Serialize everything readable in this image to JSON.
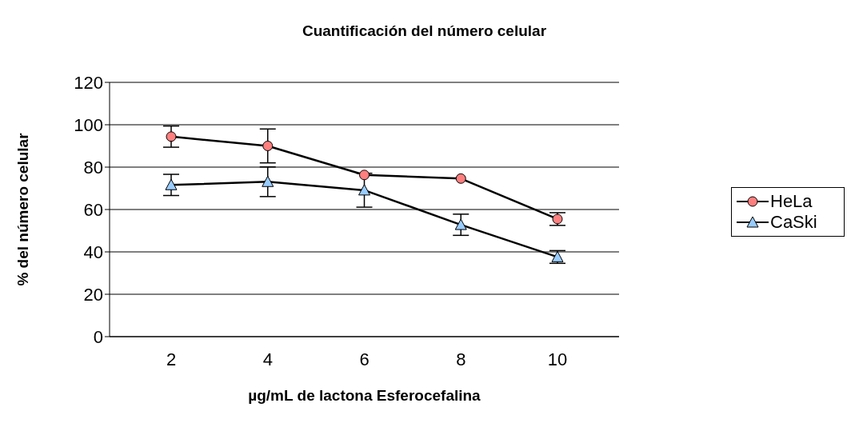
{
  "chart_data": {
    "type": "line",
    "title": "Cuantificación del número celular",
    "xlabel": "µg/mL de lactona Esferocefalina",
    "ylabel": "% del número celular",
    "categories": [
      "2",
      "4",
      "6",
      "8",
      "10"
    ],
    "series": [
      {
        "name": "HeLa",
        "color": "#ff7f7f",
        "marker": "circle",
        "values": [
          94.4,
          90.0,
          76.3,
          74.6,
          55.5
        ],
        "errors": [
          5,
          8,
          null,
          null,
          3
        ]
      },
      {
        "name": "CaSki",
        "color": "#99ccff",
        "marker": "triangle",
        "values": [
          71.6,
          73.1,
          69.1,
          52.8,
          37.6
        ],
        "errors": [
          5,
          7,
          8,
          5,
          3
        ]
      }
    ],
    "ylim": [
      0,
      120
    ],
    "yticks": [
      0,
      20,
      40,
      60,
      80,
      100,
      120
    ],
    "grid": "y",
    "legend": "right"
  }
}
